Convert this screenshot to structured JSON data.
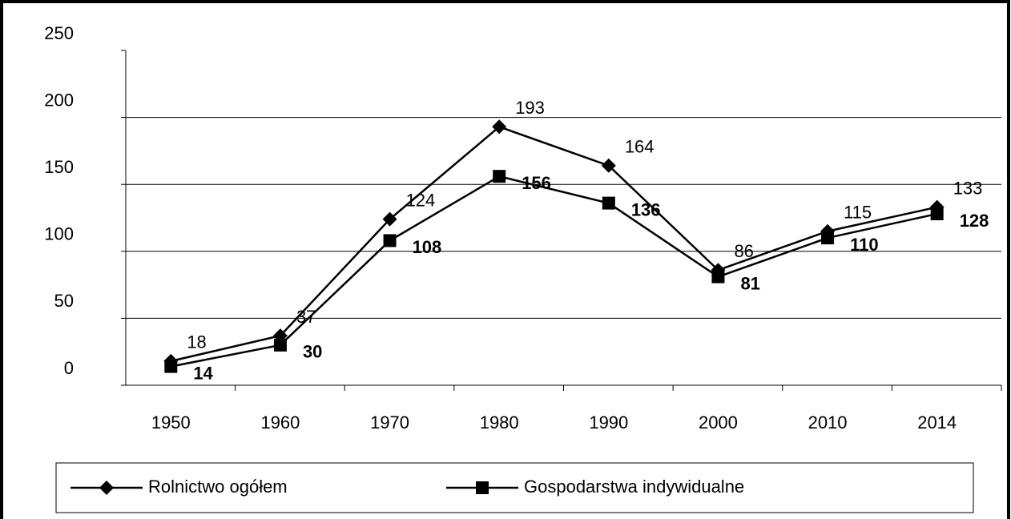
{
  "chart_data": {
    "type": "line",
    "categories": [
      "1950",
      "1960",
      "1970",
      "1980",
      "1990",
      "2000",
      "2010",
      "2014"
    ],
    "series": [
      {
        "name": "Rolnictwo ogółem",
        "color": "#000000",
        "marker": "diamond",
        "values": [
          18,
          37,
          124,
          193,
          164,
          86,
          115,
          133
        ]
      },
      {
        "name": "Gospodarstwa indywidualne",
        "color": "#000000",
        "marker": "square",
        "values": [
          14,
          30,
          108,
          156,
          136,
          81,
          110,
          128
        ]
      }
    ],
    "ylim": [
      0,
      250
    ],
    "yticks": [
      0,
      50,
      100,
      150,
      200,
      250
    ],
    "grid": true,
    "legend": "bottom"
  }
}
